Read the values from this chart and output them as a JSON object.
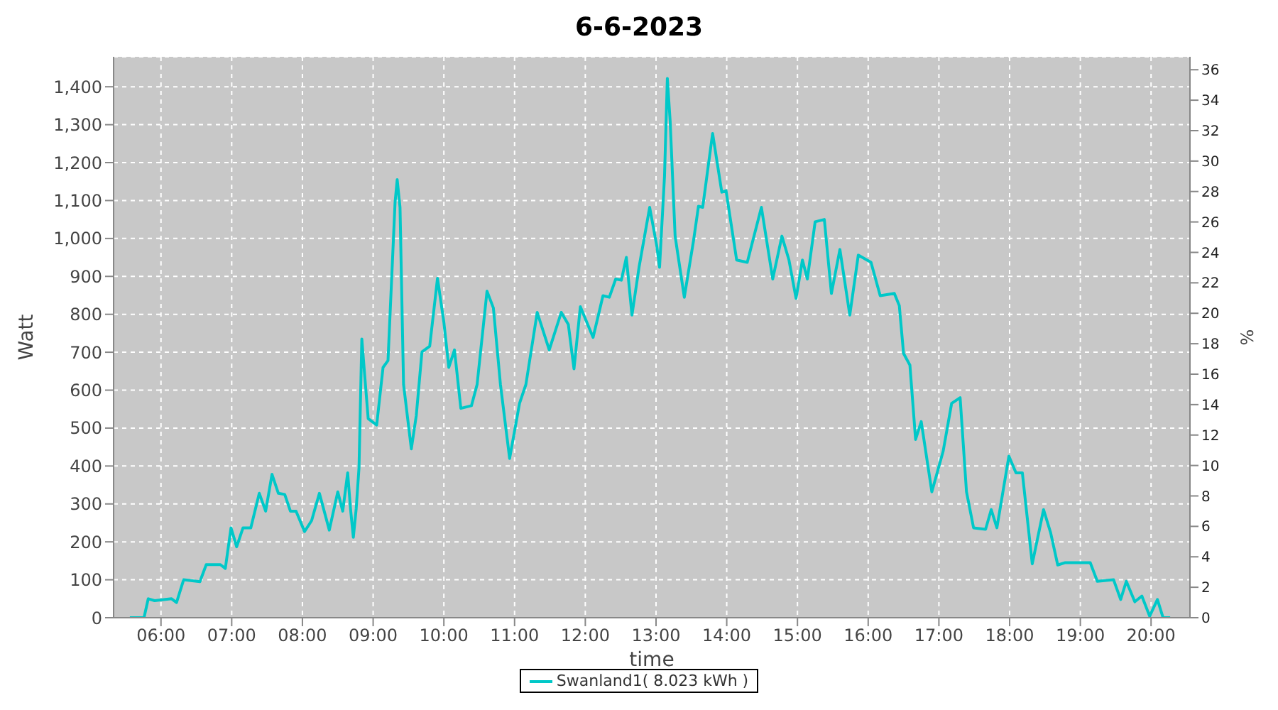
{
  "chart_data": {
    "type": "line",
    "title": "6-6-2023",
    "xlabel": "time",
    "ylabel": "Watt",
    "y2label": "%",
    "xlim": [
      5.33,
      20.55
    ],
    "xticks": [
      {
        "value": 6,
        "label": "06:00"
      },
      {
        "value": 7,
        "label": "07:00"
      },
      {
        "value": 8,
        "label": "08:00"
      },
      {
        "value": 9,
        "label": "09:00"
      },
      {
        "value": 10,
        "label": "10:00"
      },
      {
        "value": 11,
        "label": "11:00"
      },
      {
        "value": 12,
        "label": "12:00"
      },
      {
        "value": 13,
        "label": "13:00"
      },
      {
        "value": 14,
        "label": "14:00"
      },
      {
        "value": 15,
        "label": "15:00"
      },
      {
        "value": 16,
        "label": "16:00"
      },
      {
        "value": 17,
        "label": "17:00"
      },
      {
        "value": 18,
        "label": "18:00"
      },
      {
        "value": 19,
        "label": "19:00"
      },
      {
        "value": 20,
        "label": "20:00"
      }
    ],
    "ylim": [
      0,
      1479
    ],
    "yticks": [
      0,
      100,
      200,
      300,
      400,
      500,
      600,
      700,
      800,
      900,
      {
        "value": 1000,
        "label": "1,000"
      },
      {
        "value": 1100,
        "label": "1,100"
      },
      {
        "value": 1200,
        "label": "1,200"
      },
      {
        "value": 1300,
        "label": "1,300"
      },
      {
        "value": 1400,
        "label": "1,400"
      }
    ],
    "y2lim": [
      0,
      36.85
    ],
    "y2ticks": [
      0,
      2,
      4,
      6,
      8,
      10,
      12,
      14,
      16,
      18,
      20,
      22,
      24,
      26,
      28,
      30,
      32,
      34,
      36
    ],
    "grid": true,
    "legend": "bottom",
    "marker": "none",
    "line_style": "solid",
    "series": [
      {
        "name": "Swanland1( 8.023 kWh )",
        "color": "#00c8c8",
        "x": [
          5.56,
          5.76,
          5.82,
          5.91,
          6.15,
          6.22,
          6.32,
          6.55,
          6.64,
          6.84,
          6.91,
          6.99,
          7.07,
          7.16,
          7.27,
          7.39,
          7.48,
          7.57,
          7.66,
          7.75,
          7.83,
          7.91,
          8.03,
          8.13,
          8.24,
          8.38,
          8.5,
          8.57,
          8.64,
          8.68,
          8.72,
          8.76,
          8.8,
          8.84,
          8.88,
          8.93,
          9.05,
          9.14,
          9.21,
          9.31,
          9.34,
          9.38,
          9.43,
          9.54,
          9.61,
          9.69,
          9.8,
          9.91,
          10.0,
          10.07,
          10.15,
          10.24,
          10.39,
          10.47,
          10.61,
          10.7,
          10.8,
          10.93,
          11.07,
          11.16,
          11.32,
          11.49,
          11.66,
          11.76,
          11.84,
          11.93,
          12.11,
          12.25,
          12.34,
          12.43,
          12.51,
          12.58,
          12.66,
          12.76,
          12.91,
          13.01,
          13.05,
          13.12,
          13.16,
          13.2,
          13.27,
          13.4,
          13.53,
          13.6,
          13.66,
          13.8,
          13.93,
          13.99,
          14.14,
          14.29,
          14.49,
          14.65,
          14.78,
          14.88,
          14.98,
          15.07,
          15.14,
          15.25,
          15.38,
          15.48,
          15.6,
          15.74,
          15.86,
          16.04,
          16.17,
          16.37,
          16.44,
          16.5,
          16.59,
          16.67,
          16.75,
          16.9,
          17.06,
          17.18,
          17.3,
          17.39,
          17.49,
          17.66,
          17.74,
          17.82,
          17.99,
          18.09,
          18.18,
          18.32,
          18.48,
          18.58,
          18.68,
          18.78,
          19.14,
          19.24,
          19.47,
          19.57,
          19.65,
          19.77,
          19.87,
          19.98,
          20.09,
          20.17,
          20.27
        ],
        "values": [
          0,
          0,
          50,
          45,
          50,
          40,
          100,
          95,
          140,
          140,
          130,
          237,
          187,
          237,
          237,
          328,
          281,
          378,
          328,
          325,
          281,
          281,
          227,
          256,
          328,
          231,
          332,
          281,
          382,
          287,
          212,
          287,
          395,
          735,
          640,
          525,
          508,
          660,
          678,
          1095,
          1155,
          1082,
          615,
          445,
          533,
          701,
          716,
          895,
          779,
          660,
          706,
          552,
          559,
          615,
          861,
          817,
          615,
          420,
          565,
          615,
          805,
          706,
          805,
          773,
          656,
          820,
          739,
          849,
          845,
          893,
          890,
          950,
          798,
          924,
          1082,
          981,
          924,
          1164,
          1422,
          1309,
          1006,
          845,
          994,
          1085,
          1082,
          1277,
          1122,
          1126,
          943,
          937,
          1082,
          893,
          1006,
          943,
          842,
          943,
          893,
          1044,
          1050,
          855,
          971,
          798,
          956,
          937,
          849,
          855,
          823,
          697,
          666,
          470,
          517,
          332,
          439,
          565,
          580,
          332,
          237,
          233,
          285,
          237,
          426,
          382,
          382,
          142,
          285,
          224,
          139,
          145,
          145,
          96,
          100,
          48,
          96,
          42,
          57,
          4,
          48,
          0,
          0
        ]
      }
    ]
  }
}
